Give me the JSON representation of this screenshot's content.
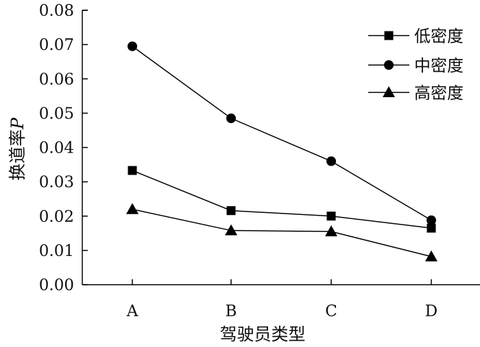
{
  "chart_data": {
    "type": "line",
    "categories": [
      "A",
      "B",
      "C",
      "D"
    ],
    "xlabel": "驾驶员类型",
    "ylabel_main": "换道率",
    "ylabel_symbol": "P",
    "ylim": [
      0,
      0.08
    ],
    "yticks": [
      "0.00",
      "0.01",
      "0.02",
      "0.03",
      "0.04",
      "0.05",
      "0.06",
      "0.07",
      "0.08"
    ],
    "grid": false,
    "legend_position": "top-right",
    "series": [
      {
        "name": "低密度",
        "marker": "square",
        "values": [
          0.0333,
          0.0216,
          0.02,
          0.0165
        ]
      },
      {
        "name": "中密度",
        "marker": "circle",
        "values": [
          0.0695,
          0.0485,
          0.036,
          0.0188
        ]
      },
      {
        "name": "高密度",
        "marker": "triangle",
        "values": [
          0.022,
          0.0158,
          0.0155,
          0.0082
        ]
      }
    ],
    "line_color": "#000000"
  }
}
